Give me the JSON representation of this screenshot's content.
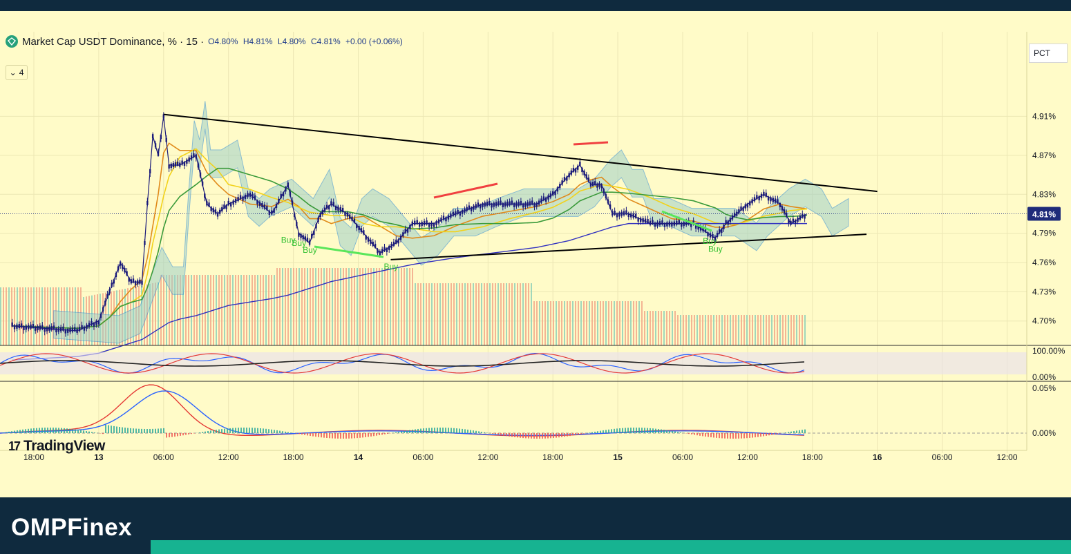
{
  "legend": {
    "symbol": "Market Cap USDT Dominance, % · 15 ·",
    "open": "O4.80%",
    "high": "H4.81%",
    "low": "L4.80%",
    "close": "C4.81%",
    "change": "+0.00 (+0.06%)",
    "collapsed_count": "4"
  },
  "toolbar": {
    "pct_label": "PCT"
  },
  "branding": {
    "tradingview": "TradingView",
    "site": "OMPFinex"
  },
  "colors": {
    "background": "#fffbc8",
    "candle": "#1a1a7a",
    "trendline": "#000000",
    "buy_signal": "#5ae65a",
    "sell_signal": "#f04040",
    "macd_line": "#2962ff",
    "signal_line": "#e53935",
    "price_badge": "#1e2b7a",
    "footer_bg": "#0f2a3e",
    "footer_accent": "#17b391"
  },
  "chart_data": [
    {
      "type": "line",
      "title": "Market Cap USDT Dominance, % · 15",
      "ylabel": "%",
      "y_tick_labels": [
        "4.91%",
        "4.87%",
        "4.83%",
        "4.79%",
        "4.76%",
        "4.73%",
        "4.70%"
      ],
      "x_tick_labels": [
        "18:00",
        "13",
        "06:00",
        "12:00",
        "18:00",
        "14",
        "06:00",
        "12:00",
        "18:00",
        "15",
        "06:00",
        "12:00",
        "18:00",
        "16",
        "06:00",
        "12:00"
      ],
      "current_price_label": "4.81%",
      "ylim": [
        4.675,
        4.95
      ],
      "series": [
        {
          "points": [
            [
              "12 16:00",
              4.695
            ],
            [
              "12 22:00",
              4.69
            ],
            [
              "13 00:00",
              4.7
            ],
            [
              "13 01:00",
              4.73
            ],
            [
              "13 02:00",
              4.76
            ],
            [
              "13 03:00",
              4.74
            ],
            [
              "13 04:00",
              4.74
            ],
            [
              "13 04:30",
              4.82
            ],
            [
              "13 05:00",
              4.89
            ],
            [
              "13 05:30",
              4.87
            ],
            [
              "13 06:00",
              4.91
            ],
            [
              "13 06:30",
              4.86
            ],
            [
              "13 07:30",
              4.86
            ],
            [
              "13 09:00",
              4.87
            ],
            [
              "13 10:00",
              4.82
            ],
            [
              "13 11:00",
              4.81
            ],
            [
              "13 12:00",
              4.82
            ],
            [
              "13 14:00",
              4.83
            ],
            [
              "13 16:00",
              4.81
            ],
            [
              "13 17:30",
              4.84
            ],
            [
              "13 18:30",
              4.79
            ],
            [
              "13 19:30",
              4.78
            ],
            [
              "13 20:30",
              4.81
            ],
            [
              "13 21:30",
              4.82
            ],
            [
              "13 23:00",
              4.81
            ],
            [
              "14 00:30",
              4.79
            ],
            [
              "14 02:00",
              4.77
            ],
            [
              "14 03:30",
              4.78
            ],
            [
              "14 05:00",
              4.8
            ],
            [
              "14 07:00",
              4.8
            ],
            [
              "14 09:00",
              4.81
            ],
            [
              "14 11:30",
              4.82
            ],
            [
              "14 14:00",
              4.82
            ],
            [
              "14 16:30",
              4.82
            ],
            [
              "14 18:00",
              4.83
            ],
            [
              "14 19:30",
              4.85
            ],
            [
              "14 20:30",
              4.86
            ],
            [
              "14 21:30",
              4.84
            ],
            [
              "14 22:30",
              4.84
            ],
            [
              "14 23:30",
              4.81
            ],
            [
              "15 01:00",
              4.81
            ],
            [
              "15 03:00",
              4.8
            ],
            [
              "15 05:00",
              4.8
            ],
            [
              "15 07:00",
              4.8
            ],
            [
              "15 09:00",
              4.785
            ],
            [
              "15 10:00",
              4.8
            ],
            [
              "15 11:00",
              4.81
            ],
            [
              "15 12:00",
              4.82
            ],
            [
              "15 13:30",
              4.83
            ],
            [
              "15 15:00",
              4.82
            ],
            [
              "15 16:00",
              4.8
            ],
            [
              "15 17:30",
              4.81
            ]
          ]
        }
      ],
      "trendlines": [
        {
          "from": [
            "13 06:00",
            4.912
          ],
          "to": [
            "16 00:00",
            4.833
          ]
        },
        {
          "from": [
            "14 03:00",
            4.763
          ],
          "to": [
            "15 23:00",
            4.789
          ]
        }
      ],
      "signals": [
        {
          "label": "Buy",
          "at": [
            "13 17:30",
            4.79
          ]
        },
        {
          "label": "Buy",
          "at": [
            "13 18:30",
            4.787
          ]
        },
        {
          "label": "Buy",
          "at": [
            "13 19:30",
            4.78
          ]
        },
        {
          "label": "Buy",
          "at": [
            "14 03:00",
            4.763
          ]
        },
        {
          "label": "Buy",
          "at": [
            "15 08:30",
            4.789
          ]
        },
        {
          "label": "Buy",
          "at": [
            "15 09:00",
            4.781
          ]
        }
      ]
    },
    {
      "type": "line",
      "title": "",
      "y_tick_labels": [
        "100.00%",
        "0.00%"
      ],
      "ylim": [
        0,
        100
      ]
    },
    {
      "type": "line",
      "title": "",
      "y_tick_labels": [
        "0.05%",
        "0.00%"
      ],
      "ylim": [
        -0.01,
        0.06
      ]
    }
  ]
}
